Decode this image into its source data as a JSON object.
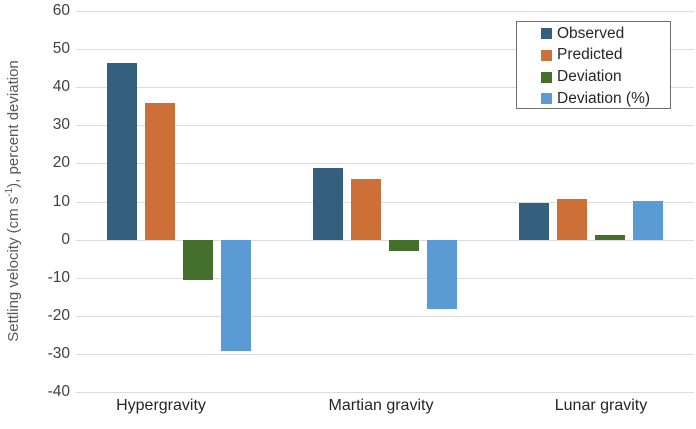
{
  "chart_data": {
    "type": "bar",
    "title": "",
    "categories": [
      "Hypergravity",
      "Martian gravity",
      "Lunar gravity"
    ],
    "series": [
      {
        "name": "Observed",
        "color": "#35607D",
        "values": [
          46.4,
          18.8,
          9.7
        ]
      },
      {
        "name": "Predicted",
        "color": "#CC7038",
        "values": [
          35.9,
          16.0,
          10.8
        ]
      },
      {
        "name": "Deviation",
        "color": "#44702C",
        "values": [
          -10.5,
          -2.9,
          1.1
        ]
      },
      {
        "name": "Deviation (%)",
        "color": "#5B9BD5",
        "values": [
          -29.2,
          -18.1,
          10.2
        ]
      }
    ],
    "xlabel": "",
    "ylabel": "Settling velocity (cm s⁻¹), percent deviation",
    "ylabel_parts": {
      "pre": "Settling velocity (cm s",
      "sup": "-1",
      "post": "), percent deviation"
    },
    "ylim": [
      -40,
      60
    ],
    "yticks": [
      60,
      50,
      40,
      30,
      20,
      10,
      0,
      -10,
      -20,
      -30,
      -40
    ],
    "grid": true,
    "legend_position": "top-right",
    "colors": {
      "gridline": "#dcdcdc",
      "tick_text": "#404040",
      "category_text": "#262626",
      "axis_title_text": "#595959",
      "legend_border": "#6f6f6f",
      "background": "#ffffff"
    }
  }
}
